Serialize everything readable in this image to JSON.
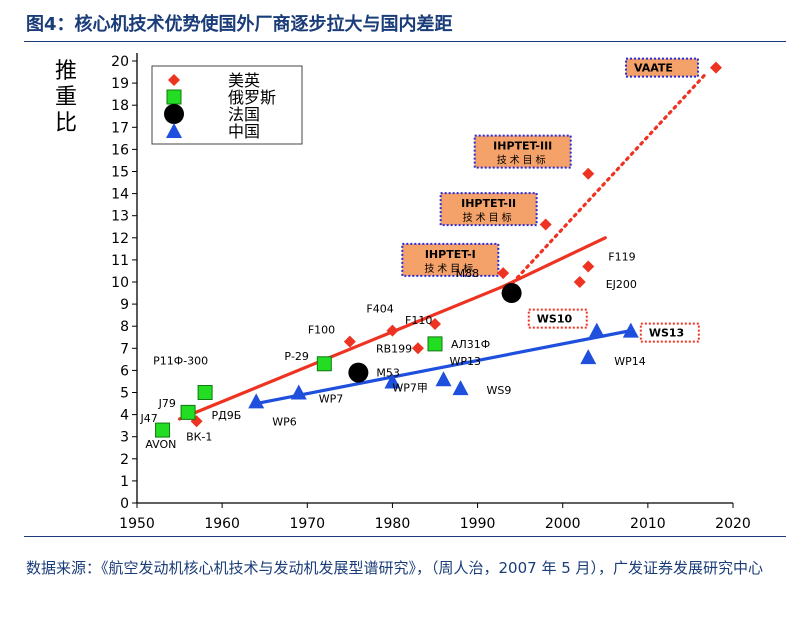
{
  "figure_title": "图4：核心机技术优势使国外厂商逐步拉大与国内差距",
  "source": "数据来源：《航空发动机核心机技术与发动机发展型谱研究》，（周人治，2007 年 5 月），广发证券发展研究中心",
  "colors": {
    "usuk": "#ee3322",
    "russia": "#22dd22",
    "france": "#000000",
    "china": "#1f4fdd",
    "box_fill": "#f5a26a",
    "box_border": "#2a2ad8",
    "ws_border": "#ee3322"
  },
  "chart_data": {
    "type": "scatter",
    "ylabel": "推重比",
    "xlim": [
      1950,
      2020
    ],
    "ylim": [
      0,
      20
    ],
    "x_ticks": [
      1950,
      1960,
      1970,
      1980,
      1990,
      2000,
      2010,
      2020
    ],
    "y_ticks": [
      0,
      1,
      2,
      3,
      4,
      5,
      6,
      7,
      8,
      9,
      10,
      11,
      12,
      13,
      14,
      15,
      16,
      17,
      18,
      19,
      20
    ],
    "legend": [
      "美英",
      "俄罗斯",
      "法国",
      "中国"
    ],
    "legend_position": "top-left",
    "series": [
      {
        "name": "美英",
        "marker": "diamond",
        "points": [
          {
            "x": 1957,
            "y": 3.7,
            "label": "J79"
          },
          {
            "x": 1975,
            "y": 7.3,
            "label": "F100"
          },
          {
            "x": 1980,
            "y": 7.8,
            "label": "F404"
          },
          {
            "x": 1983,
            "y": 7.0,
            "label": "RB199"
          },
          {
            "x": 1985,
            "y": 8.1,
            "label": "F110"
          },
          {
            "x": 1993,
            "y": 10.4,
            "label": ""
          },
          {
            "x": 1998,
            "y": 12.6,
            "label": ""
          },
          {
            "x": 2003,
            "y": 10.7,
            "label": "F119"
          },
          {
            "x": 2003,
            "y": 14.9,
            "label": ""
          },
          {
            "x": 2002,
            "y": 10.0,
            "label": "EJ200"
          },
          {
            "x": 2018,
            "y": 19.7,
            "label": "VAATE"
          }
        ]
      },
      {
        "name": "俄罗斯",
        "marker": "square",
        "points": [
          {
            "x": 1953,
            "y": 3.3,
            "label": "J47"
          },
          {
            "x": 1956,
            "y": 4.1,
            "label": "ВК-1"
          },
          {
            "x": 1958,
            "y": 5.0,
            "label": "Р11Ф-300"
          },
          {
            "x": 1972,
            "y": 6.3,
            "label": "Р-29"
          },
          {
            "x": 1985,
            "y": 7.2,
            "label": "АЛ31Ф"
          }
        ]
      },
      {
        "name": "法国",
        "marker": "circle",
        "points": [
          {
            "x": 1976,
            "y": 5.9,
            "label": "M53"
          },
          {
            "x": 1994,
            "y": 9.5,
            "label": "M88"
          }
        ]
      },
      {
        "name": "中国",
        "marker": "triangle",
        "points": [
          {
            "x": 1964,
            "y": 4.6,
            "label": "WP6"
          },
          {
            "x": 1969,
            "y": 5.0,
            "label": "WP7"
          },
          {
            "x": 1980,
            "y": 5.5,
            "label": "WP7甲"
          },
          {
            "x": 1986,
            "y": 5.6,
            "label": "WP13"
          },
          {
            "x": 1988,
            "y": 5.2,
            "label": "WS9"
          },
          {
            "x": 2004,
            "y": 7.8,
            "label": "WS10"
          },
          {
            "x": 2003,
            "y": 6.6,
            "label": "WP14"
          },
          {
            "x": 2008,
            "y": 7.8,
            "label": "WS13"
          }
        ]
      }
    ],
    "trend_lines": [
      {
        "series": "美英",
        "from": [
          1955,
          3.8
        ],
        "to": [
          1993,
          9.8
        ],
        "style": "solid",
        "color": "#ee3322"
      },
      {
        "series": "美英",
        "from": [
          1993,
          9.8
        ],
        "to": [
          2005,
          12.0
        ],
        "style": "solid",
        "color": "#ee3322"
      },
      {
        "series": "美英",
        "from": [
          1993,
          9.5
        ],
        "to": [
          2017,
          19.5
        ],
        "style": "dotted",
        "color": "#ee3322"
      },
      {
        "series": "中国",
        "from": [
          1964,
          4.5
        ],
        "to": [
          2008,
          7.8
        ],
        "style": "solid",
        "color": "#1f4fdd"
      }
    ],
    "program_boxes": [
      {
        "line1": "IHPTET-I",
        "line2": "技术目标",
        "x": 1986.8,
        "y": 11.0
      },
      {
        "line1": "IHPTET-II",
        "line2": "技术目标",
        "x": 1991.3,
        "y": 13.3
      },
      {
        "line1": "IHPTET-III",
        "line2": "技术目标",
        "x": 1995.3,
        "y": 15.9
      }
    ],
    "text_labels": [
      {
        "text": "AVON",
        "x": 1952.8,
        "y": 2.5
      },
      {
        "text": "РД9Б",
        "x": 1960.5,
        "y": 3.8
      }
    ]
  }
}
